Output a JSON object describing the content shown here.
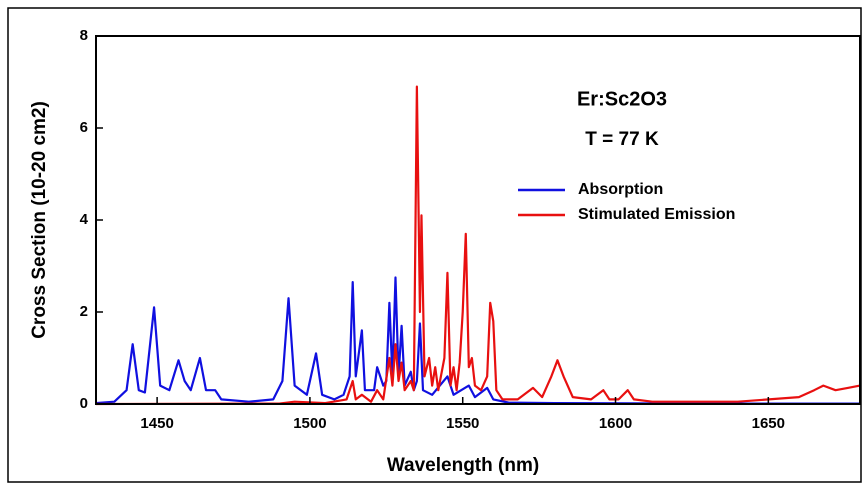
{
  "chart_data": {
    "type": "line",
    "xlabel": "Wavelength (nm)",
    "ylabel": "Cross Section (10-20 cm2)",
    "annotations": [
      "Er:Sc2O3",
      "T = 77 K"
    ],
    "xlim": [
      1430,
      1680
    ],
    "xticks": [
      1450,
      1500,
      1550,
      1600,
      1650
    ],
    "ylim": [
      0,
      8
    ],
    "yticks": [
      0,
      2,
      4,
      6,
      8
    ],
    "legend": "upper right",
    "series": [
      {
        "name": "Absorption",
        "color": "#1010e0",
        "x": [
          1430,
          1436,
          1440,
          1442,
          1444,
          1446,
          1449,
          1451,
          1454,
          1457,
          1459,
          1461,
          1464,
          1466,
          1469,
          1471,
          1480,
          1488,
          1491,
          1493,
          1495,
          1499,
          1502,
          1504,
          1508,
          1511,
          1513,
          1514,
          1515,
          1517,
          1518,
          1521,
          1522,
          1524,
          1525,
          1526,
          1527,
          1528,
          1529,
          1530,
          1531,
          1533,
          1534,
          1535,
          1536,
          1537,
          1540,
          1545,
          1547,
          1552,
          1554,
          1558,
          1560,
          1565,
          1580,
          1620,
          1680
        ],
        "values": [
          0.02,
          0.05,
          0.3,
          1.3,
          0.3,
          0.25,
          2.1,
          0.4,
          0.3,
          0.95,
          0.5,
          0.3,
          1.0,
          0.3,
          0.3,
          0.1,
          0.05,
          0.1,
          0.5,
          2.3,
          0.4,
          0.2,
          1.1,
          0.2,
          0.1,
          0.2,
          0.6,
          2.65,
          0.6,
          1.6,
          0.3,
          0.3,
          0.8,
          0.4,
          0.5,
          2.2,
          0.6,
          2.75,
          0.6,
          1.7,
          0.4,
          0.7,
          0.3,
          0.5,
          1.75,
          0.3,
          0.2,
          0.6,
          0.2,
          0.4,
          0.15,
          0.35,
          0.1,
          0.03,
          0.02,
          0.01,
          0.01
        ]
      },
      {
        "name": "Stimulated Emission",
        "color": "#e81010",
        "x": [
          1430,
          1490,
          1495,
          1505,
          1512,
          1514,
          1515,
          1517,
          1520,
          1522,
          1524,
          1526,
          1527,
          1528,
          1529,
          1530,
          1531,
          1533,
          1534,
          1535,
          1536,
          1536.5,
          1537.5,
          1539,
          1540,
          1541,
          1542,
          1544,
          1545,
          1546,
          1547,
          1548,
          1549,
          1550,
          1551,
          1552,
          1553,
          1554,
          1556,
          1558,
          1559,
          1560,
          1561,
          1563,
          1568,
          1573,
          1576,
          1579,
          1581,
          1583,
          1586,
          1592,
          1596,
          1598,
          1601,
          1604,
          1606,
          1612,
          1640,
          1660,
          1665,
          1668,
          1672,
          1676,
          1680
        ],
        "values": [
          0,
          0.01,
          0.05,
          0.02,
          0.1,
          0.5,
          0.1,
          0.2,
          0.05,
          0.3,
          0.1,
          1.0,
          0.4,
          1.3,
          0.5,
          0.9,
          0.3,
          0.5,
          0.3,
          6.9,
          2.0,
          4.1,
          0.6,
          1.0,
          0.4,
          0.8,
          0.3,
          1.0,
          2.85,
          0.4,
          0.8,
          0.3,
          0.9,
          2.0,
          3.7,
          0.8,
          1.0,
          0.4,
          0.3,
          0.6,
          2.2,
          1.8,
          0.3,
          0.1,
          0.1,
          0.35,
          0.15,
          0.6,
          0.95,
          0.6,
          0.15,
          0.1,
          0.3,
          0.1,
          0.1,
          0.3,
          0.1,
          0.05,
          0.05,
          0.15,
          0.3,
          0.4,
          0.3,
          0.35,
          0.4
        ]
      }
    ]
  }
}
